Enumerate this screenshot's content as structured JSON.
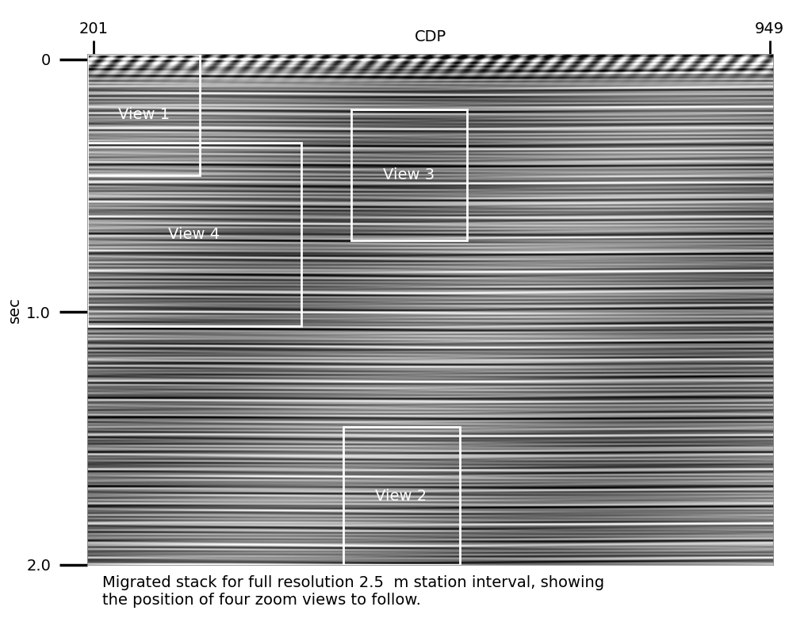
{
  "chart_data": {
    "type": "image",
    "x_label": "CDP",
    "y_label": "sec",
    "xlim": [
      194,
      953
    ],
    "xticks": [
      201,
      949
    ],
    "ylim": [
      2.0,
      -0.02
    ],
    "yticks": [
      0,
      1.0,
      2.0
    ],
    "caption": "Migrated stack for full resolution 2.5  m station interval, showing\nthe position of four zoom views to follow.",
    "boxes": [
      {
        "label": "View 1",
        "x": [
          194,
          319
        ],
        "y": [
          -0.02,
          0.46
        ]
      },
      {
        "label": "View 4",
        "x": [
          194,
          431
        ],
        "y": [
          0.33,
          1.055
        ]
      },
      {
        "label": "View 3",
        "x": [
          486,
          614
        ],
        "y": [
          0.2,
          0.717
        ]
      },
      {
        "label": "View 2",
        "x": [
          477,
          606
        ],
        "y": [
          1.455,
          2.0
        ]
      }
    ],
    "color": "#ffffff",
    "tick_labels": true,
    "grid": false
  }
}
